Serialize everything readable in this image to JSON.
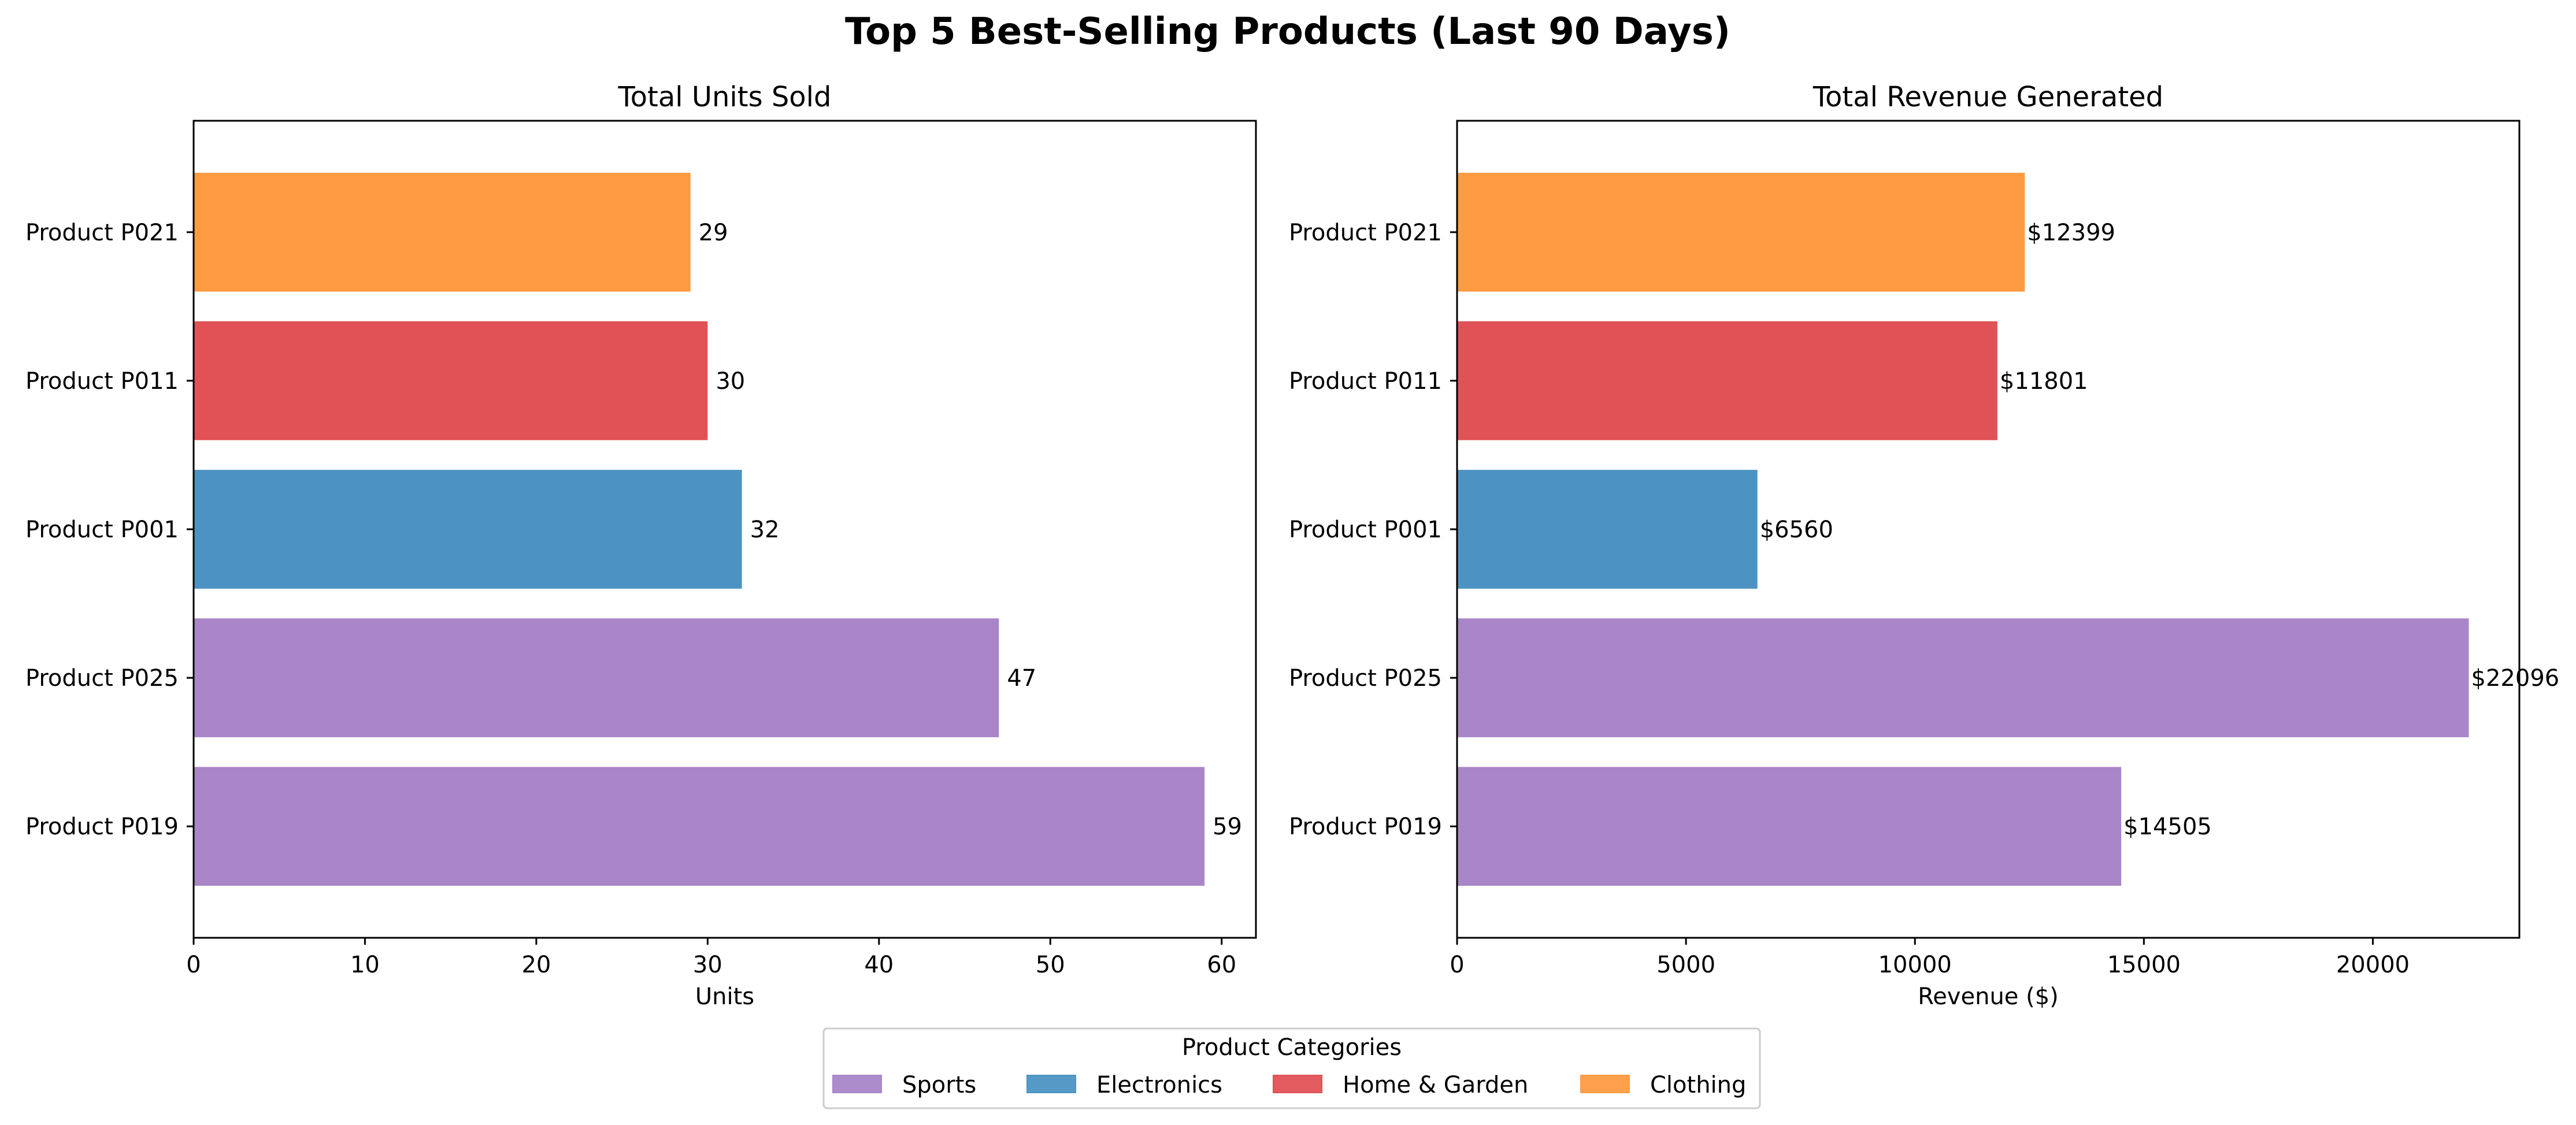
{
  "chart_data": {
    "title": "Top 5 Best-Selling Products (Last 90 Days)",
    "type": "bar",
    "orientation": "horizontal",
    "categories": [
      "Product P019",
      "Product P025",
      "Product P001",
      "Product P011",
      "Product P021"
    ],
    "category_group": [
      "Sports",
      "Sports",
      "Electronics",
      "Home & Garden",
      "Clothing"
    ],
    "panels": [
      {
        "title": "Total Units Sold",
        "xlabel": "Units",
        "ylabel": "",
        "xlim": [
          0,
          62
        ],
        "xticks": [
          0,
          10,
          20,
          30,
          40,
          50,
          60
        ],
        "values": [
          59,
          47,
          32,
          30,
          29
        ],
        "value_labels": [
          "59",
          "47",
          "32",
          "30",
          "29"
        ]
      },
      {
        "title": "Total Revenue Generated",
        "xlabel": "Revenue ($)",
        "ylabel": "",
        "xlim": [
          0,
          23200
        ],
        "xticks": [
          0,
          5000,
          10000,
          15000,
          20000
        ],
        "values": [
          14505,
          22096,
          6560,
          11801,
          12399
        ],
        "value_labels": [
          "$14505",
          "$22096",
          "$6560",
          "$11801",
          "$12399"
        ]
      }
    ],
    "legend": {
      "title": "Product Categories",
      "placement": "bottom-center",
      "entries": [
        {
          "label": "Sports",
          "color": "#a886c8"
        },
        {
          "label": "Electronics",
          "color": "#4c93c3"
        },
        {
          "label": "Home & Garden",
          "color": "#e05256"
        },
        {
          "label": "Clothing",
          "color": "#ff9b43"
        }
      ]
    },
    "colors": {
      "Sports": "#a886c8",
      "Electronics": "#4c93c3",
      "Home & Garden": "#e05256",
      "Clothing": "#ff9b43"
    },
    "grid": false
  }
}
